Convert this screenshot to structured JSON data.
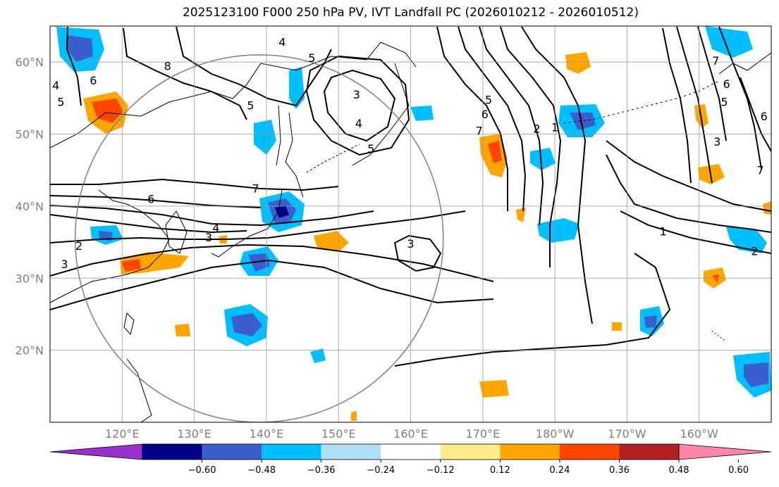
{
  "title": "2025123100 F000 250 hPa PV, IVT Landfall PC (2026010212 - 2026010512)",
  "map": {
    "lon_range": [
      110,
      210
    ],
    "lat_range": [
      10,
      65
    ],
    "x_ticks": [
      {
        "lon": 120,
        "label": "120°E"
      },
      {
        "lon": 130,
        "label": "130°E"
      },
      {
        "lon": 140,
        "label": "140°E"
      },
      {
        "lon": 150,
        "label": "150°E"
      },
      {
        "lon": 160,
        "label": "160°E"
      },
      {
        "lon": 170,
        "label": "170°E"
      },
      {
        "lon": 180,
        "label": "180°W"
      },
      {
        "lon": 190,
        "label": "170°W"
      },
      {
        "lon": 200,
        "label": "160°W"
      }
    ],
    "y_ticks": [
      {
        "lat": 20,
        "label": "20°N"
      },
      {
        "lat": 30,
        "label": "30°N"
      },
      {
        "lat": 40,
        "label": "40°N"
      },
      {
        "lat": 50,
        "label": "50°N"
      },
      {
        "lat": 60,
        "label": "60°N"
      }
    ],
    "grid": true,
    "circle": {
      "center_lon": 139,
      "center_lat": 35.5,
      "radius_deg": 25.5
    },
    "contour_labels": [
      {
        "text": "4",
        "lon": 142.2,
        "lat": 62.8
      },
      {
        "text": "5",
        "lon": 146.3,
        "lat": 60.6
      },
      {
        "text": "8",
        "lon": 126.3,
        "lat": 59.5
      },
      {
        "text": "7",
        "lon": 202.3,
        "lat": 60.2
      },
      {
        "text": "4",
        "lon": 110.8,
        "lat": 56.8
      },
      {
        "text": "5",
        "lon": 111.5,
        "lat": 54.5
      },
      {
        "text": "6",
        "lon": 116.0,
        "lat": 57.5
      },
      {
        "text": "5",
        "lon": 137.8,
        "lat": 54.0
      },
      {
        "text": "3",
        "lon": 152.5,
        "lat": 55.5
      },
      {
        "text": "4",
        "lon": 152.8,
        "lat": 51.5
      },
      {
        "text": "5",
        "lon": 154.5,
        "lat": 48.0
      },
      {
        "text": "7",
        "lon": 169.5,
        "lat": 50.5
      },
      {
        "text": "6",
        "lon": 170.3,
        "lat": 52.8
      },
      {
        "text": "5",
        "lon": 170.8,
        "lat": 54.8
      },
      {
        "text": "2",
        "lon": 177.5,
        "lat": 50.8
      },
      {
        "text": "1",
        "lon": 180.0,
        "lat": 51.0
      },
      {
        "text": "6",
        "lon": 203.8,
        "lat": 57.0
      },
      {
        "text": "5",
        "lon": 203.5,
        "lat": 54.5
      },
      {
        "text": "6",
        "lon": 209.0,
        "lat": 52.5
      },
      {
        "text": "3",
        "lon": 202.5,
        "lat": 49.0
      },
      {
        "text": "7",
        "lon": 208.5,
        "lat": 45.0
      },
      {
        "text": "7",
        "lon": 138.5,
        "lat": 42.5
      },
      {
        "text": "6",
        "lon": 124.0,
        "lat": 41.0
      },
      {
        "text": "4",
        "lon": 133.0,
        "lat": 37.0
      },
      {
        "text": "3",
        "lon": 132.0,
        "lat": 35.7
      },
      {
        "text": "3",
        "lon": 160.0,
        "lat": 34.8
      },
      {
        "text": "2",
        "lon": 114.0,
        "lat": 34.5
      },
      {
        "text": "3",
        "lon": 112.0,
        "lat": 32.0
      },
      {
        "text": "1",
        "lon": 195.0,
        "lat": 36.5
      },
      {
        "text": "2",
        "lon": 207.7,
        "lat": 33.8
      }
    ]
  },
  "colorbar": {
    "colors": [
      "#9932cc",
      "#00008b",
      "#3a5fcd",
      "#00bfff",
      "#b0e0f6",
      "#ffffff",
      "#ffec8b",
      "#ffa500",
      "#ff4500",
      "#b22222",
      "#ff86a8"
    ],
    "labels": [
      "−0.60",
      "−0.48",
      "−0.36",
      "−0.24",
      "−0.12",
      "0.12",
      "0.24",
      "0.36",
      "0.48",
      "0.60"
    ]
  }
}
